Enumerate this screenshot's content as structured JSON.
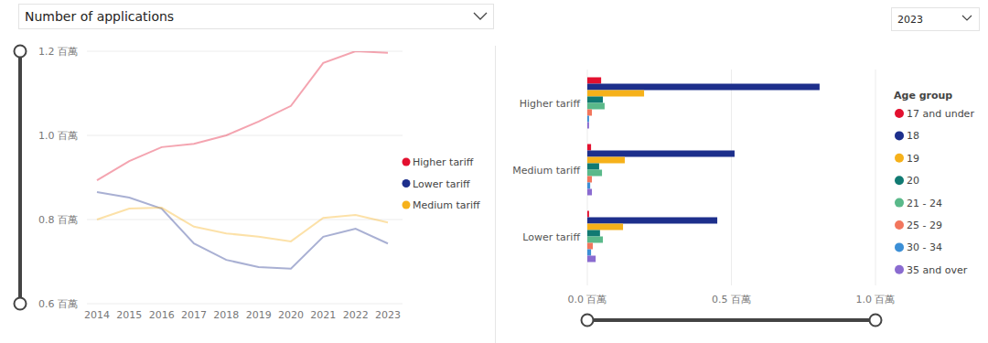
{
  "controls": {
    "metric": "Number of applications",
    "year": "2023"
  },
  "chart_data": [
    {
      "type": "line",
      "categories": [
        "2014",
        "2015",
        "2016",
        "2017",
        "2018",
        "2019",
        "2020",
        "2021",
        "2022",
        "2023"
      ],
      "series": [
        {
          "name": "Higher tariff",
          "color": "#e3102f",
          "values": [
            0.893,
            0.939,
            0.972,
            0.98,
            1.0,
            1.033,
            1.07,
            1.172,
            1.2,
            1.196
          ]
        },
        {
          "name": "Lower tariff",
          "color": "#1d2f8c",
          "values": [
            0.865,
            0.852,
            0.826,
            0.743,
            0.704,
            0.687,
            0.683,
            0.759,
            0.778,
            0.743
          ]
        },
        {
          "name": "Medium tariff",
          "color": "#f6b11a",
          "values": [
            0.8,
            0.826,
            0.828,
            0.783,
            0.767,
            0.759,
            0.748,
            0.804,
            0.811,
            0.793
          ]
        }
      ],
      "ylim": [
        0.6,
        1.2
      ],
      "yticks": [
        {
          "value": 0.6,
          "label": "0.6 百萬"
        },
        {
          "value": 0.8,
          "label": "0.8 百萬"
        },
        {
          "value": 1.0,
          "label": "1.0 百萬"
        },
        {
          "value": 1.2,
          "label": "1.2 百萬"
        }
      ],
      "grid": true,
      "legend": "right"
    },
    {
      "type": "bar",
      "orientation": "horizontal",
      "categories": [
        "Higher tariff",
        "Medium tariff",
        "Lower tariff"
      ],
      "legend_title": "Age group",
      "series": [
        {
          "name": "17 and under",
          "color": "#e3102f",
          "values": [
            0.048,
            0.013,
            0.006
          ]
        },
        {
          "name": "18",
          "color": "#1d2f8c",
          "values": [
            0.806,
            0.511,
            0.451
          ]
        },
        {
          "name": "19",
          "color": "#f6b11a",
          "values": [
            0.197,
            0.13,
            0.124
          ]
        },
        {
          "name": "20",
          "color": "#117a72",
          "values": [
            0.054,
            0.041,
            0.044
          ]
        },
        {
          "name": "21 - 24",
          "color": "#5ab98a",
          "values": [
            0.06,
            0.051,
            0.054
          ]
        },
        {
          "name": "25 - 29",
          "color": "#f2765d",
          "values": [
            0.016,
            0.016,
            0.019
          ]
        },
        {
          "name": "30 - 34",
          "color": "#3c8fd6",
          "values": [
            0.006,
            0.01,
            0.013
          ]
        },
        {
          "name": "35 and over",
          "color": "#8a6bd0",
          "values": [
            0.006,
            0.016,
            0.029
          ]
        }
      ],
      "xlim": [
        0,
        1.0
      ],
      "xticks": [
        {
          "value": 0,
          "label": "0.0 百萬"
        },
        {
          "value": 0.5,
          "label": "0.5 百萬"
        },
        {
          "value": 1.0,
          "label": "1.0 百萬"
        }
      ],
      "grid": true,
      "legend": "right"
    }
  ]
}
